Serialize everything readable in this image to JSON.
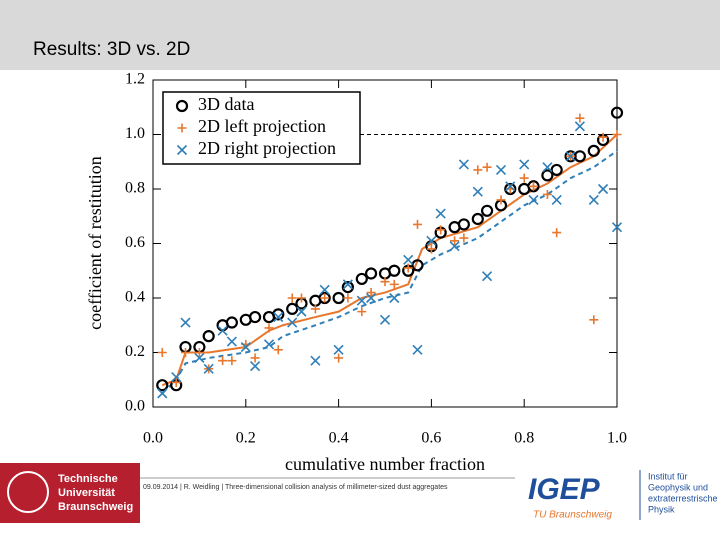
{
  "slide": {
    "title": "Results: 3D vs. 2D",
    "footer": "09.09.2014 | R. Weidling | Three-dimensional collision analysis of millimeter-sized dust aggregates",
    "logo_left": [
      "Technische",
      "Universität",
      "Braunschweig"
    ],
    "logo_igep": "IGEP",
    "logo_igep_sub": "TU Braunschweig",
    "logo_institute": [
      "Institut für",
      "Geophysik und",
      "extraterrestrische",
      "Physik"
    ]
  },
  "chart_data": {
    "type": "scatter",
    "xlabel": "cumulative number fraction",
    "ylabel": "coefficient of restitution",
    "xlim": [
      0,
      1
    ],
    "ylim": [
      0,
      1.2
    ],
    "xticks": [
      {
        "value": 0,
        "label": "0.0"
      },
      0.2,
      0.4,
      0.6,
      0.8,
      {
        "value": 1,
        "label": "1.0"
      }
    ],
    "yticks": [
      {
        "value": 0,
        "label": "0.0"
      },
      0.2,
      0.4,
      0.6,
      0.8,
      {
        "value": 1,
        "label": "1.0"
      },
      1.2
    ],
    "hline": 1,
    "legend": "upper left",
    "x": [
      0.02,
      0.05,
      0.07,
      0.1,
      0.12,
      0.15,
      0.17,
      0.2,
      0.22,
      0.25,
      0.27,
      0.3,
      0.32,
      0.35,
      0.37,
      0.4,
      0.42,
      0.45,
      0.47,
      0.5,
      0.52,
      0.55,
      0.57,
      0.6,
      0.62,
      0.65,
      0.67,
      0.7,
      0.72,
      0.75,
      0.77,
      0.8,
      0.82,
      0.85,
      0.87,
      0.9,
      0.92,
      0.95,
      0.97,
      1.0
    ],
    "series": [
      {
        "name": "3D data",
        "color": "#000000",
        "marker": "circle",
        "values": [
          0.08,
          0.08,
          0.22,
          0.22,
          0.26,
          0.3,
          0.31,
          0.32,
          0.33,
          0.33,
          0.34,
          0.36,
          0.38,
          0.39,
          0.4,
          0.4,
          0.44,
          0.47,
          0.49,
          0.49,
          0.5,
          0.5,
          0.52,
          0.59,
          0.64,
          0.66,
          0.67,
          0.69,
          0.72,
          0.74,
          0.8,
          0.8,
          0.81,
          0.85,
          0.87,
          0.92,
          0.92,
          0.94,
          0.98,
          1.08
        ]
      },
      {
        "name": "2D left projection",
        "color": "#e8772e",
        "marker": "plus",
        "values": [
          0.2,
          0.09,
          0.2,
          0.2,
          0.14,
          0.17,
          0.17,
          0.23,
          0.18,
          0.29,
          0.21,
          0.4,
          0.4,
          0.36,
          0.4,
          0.18,
          0.4,
          0.35,
          0.42,
          0.46,
          0.45,
          0.51,
          0.67,
          0.58,
          0.65,
          0.61,
          0.62,
          0.87,
          0.88,
          0.76,
          0.8,
          0.84,
          0.81,
          0.78,
          0.64,
          0.92,
          1.06,
          0.32,
          0.99,
          1.0
        ]
      },
      {
        "name": "2D right projection",
        "color": "#2f7fb8",
        "marker": "cross",
        "values": [
          0.05,
          0.11,
          0.31,
          0.18,
          0.14,
          0.28,
          0.24,
          0.22,
          0.15,
          0.23,
          0.33,
          0.31,
          0.35,
          0.17,
          0.43,
          0.21,
          0.45,
          0.39,
          0.4,
          0.32,
          0.4,
          0.54,
          0.21,
          0.61,
          0.71,
          0.59,
          0.89,
          0.79,
          0.48,
          0.87,
          0.81,
          0.89,
          0.76,
          0.88,
          0.76,
          0.92,
          1.03,
          0.76,
          0.8,
          0.66
        ]
      }
    ],
    "lines": [
      {
        "color": "#e8772e",
        "dash": false,
        "x": [
          0.02,
          0.05,
          0.07,
          0.12,
          0.2,
          0.25,
          0.28,
          0.35,
          0.4,
          0.45,
          0.5,
          0.55,
          0.58,
          0.62,
          0.7,
          0.75,
          0.8,
          0.85,
          0.9,
          0.95,
          1.0
        ],
        "values": [
          0.08,
          0.1,
          0.2,
          0.2,
          0.22,
          0.28,
          0.3,
          0.33,
          0.35,
          0.4,
          0.42,
          0.45,
          0.58,
          0.62,
          0.66,
          0.72,
          0.78,
          0.82,
          0.88,
          0.92,
          1.0
        ]
      },
      {
        "color": "#2f7fb8",
        "dash": true,
        "x": [
          0.02,
          0.05,
          0.07,
          0.12,
          0.2,
          0.25,
          0.28,
          0.35,
          0.4,
          0.45,
          0.5,
          0.55,
          0.58,
          0.62,
          0.7,
          0.75,
          0.8,
          0.85,
          0.9,
          0.95,
          1.0
        ],
        "values": [
          0.05,
          0.1,
          0.16,
          0.18,
          0.2,
          0.22,
          0.26,
          0.3,
          0.33,
          0.37,
          0.4,
          0.42,
          0.52,
          0.56,
          0.62,
          0.68,
          0.74,
          0.78,
          0.84,
          0.88,
          0.94
        ]
      }
    ]
  }
}
